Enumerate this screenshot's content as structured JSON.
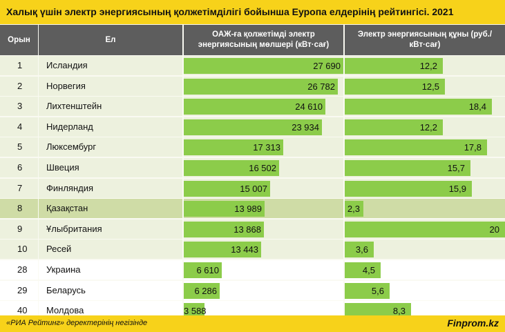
{
  "title": "Халық үшін электр энергиясының қолжетімділігі бойынша Еуропа елдерінің рейтингісі. 2021",
  "header": {
    "rank": "Орын",
    "country": "Ел",
    "col1": "ОАЖ-ға қолжетімді электр энергиясының мөлшері (кВт·сағ)",
    "col2": "Электр энергиясының құны (руб./кВт·сағ)"
  },
  "colors": {
    "accent": "#f7d21a",
    "header": "#5d5d5d",
    "bar": "#8ccc4a",
    "row_light": "#ffffff",
    "row_tint": "#edf1de",
    "row_highlight": "#cfdca6"
  },
  "footer": {
    "source": "«РИА Рейтинг» деректерінің негізінде",
    "brand": "Finprom.kz"
  },
  "chart_data": {
    "type": "table",
    "title": "Халық үшін электр энергиясының қолжетімділігі бойынша Еуропа елдерінің рейтингісі. 2021",
    "columns": [
      "Орын",
      "Ел",
      "ОАЖ-ға қолжетімді электр энергиясының мөлшері (кВт·сағ)",
      "Электр энергиясының құны (руб./кВт·сағ)"
    ],
    "col1_max": 27690,
    "col2_max": 20,
    "highlight_country": "Қазақстан",
    "rows": [
      {
        "rank": "1",
        "country": "Исландия",
        "kwh": 27690,
        "kwh_label": "27 690",
        "price": 12.2,
        "price_label": "12,2"
      },
      {
        "rank": "2",
        "country": "Норвегия",
        "kwh": 26782,
        "kwh_label": "26 782",
        "price": 12.5,
        "price_label": "12,5"
      },
      {
        "rank": "3",
        "country": "Лихтенштейн",
        "kwh": 24610,
        "kwh_label": "24 610",
        "price": 18.4,
        "price_label": "18,4"
      },
      {
        "rank": "4",
        "country": "Нидерланд",
        "kwh": 23934,
        "kwh_label": "23 934",
        "price": 12.2,
        "price_label": "12,2"
      },
      {
        "rank": "5",
        "country": "Люксембург",
        "kwh": 17313,
        "kwh_label": "17 313",
        "price": 17.8,
        "price_label": "17,8"
      },
      {
        "rank": "6",
        "country": "Швеция",
        "kwh": 16502,
        "kwh_label": "16 502",
        "price": 15.7,
        "price_label": "15,7"
      },
      {
        "rank": "7",
        "country": "Финляндия",
        "kwh": 15007,
        "kwh_label": "15 007",
        "price": 15.9,
        "price_label": "15,9"
      },
      {
        "rank": "8",
        "country": "Қазақстан",
        "kwh": 13989,
        "kwh_label": "13 989",
        "price": 2.3,
        "price_label": "2,3"
      },
      {
        "rank": "9",
        "country": "Ұлыбритания",
        "kwh": 13868,
        "kwh_label": "13 868",
        "price": 20,
        "price_label": "20"
      },
      {
        "rank": "10",
        "country": "Ресей",
        "kwh": 13443,
        "kwh_label": "13 443",
        "price": 3.6,
        "price_label": "3,6"
      },
      {
        "rank": "28",
        "country": "Украина",
        "kwh": 6610,
        "kwh_label": "6 610",
        "price": 4.5,
        "price_label": "4,5"
      },
      {
        "rank": "29",
        "country": "Беларусь",
        "kwh": 6286,
        "kwh_label": "6 286",
        "price": 5.6,
        "price_label": "5,6"
      },
      {
        "rank": "40",
        "country": "Молдова",
        "kwh": 3588,
        "kwh_label": "3 588",
        "price": 8.3,
        "price_label": "8,3"
      }
    ]
  }
}
